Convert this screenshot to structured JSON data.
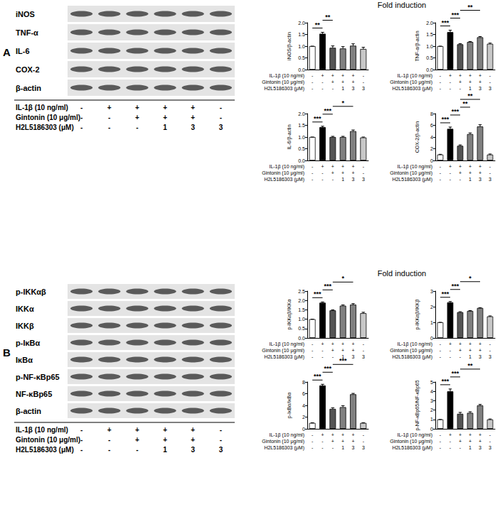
{
  "panels": [
    {
      "label": "A",
      "heading": "Fold induction",
      "blot_rows": [
        "iNOS",
        "TNF-α",
        "IL-6",
        "COX-2",
        "β-actin"
      ],
      "treatments": [
        {
          "label": "IL-1β (10 ng/ml)",
          "marks": [
            "-",
            "+",
            "+",
            "+",
            "+",
            "-"
          ]
        },
        {
          "label": "Gintonin (10 μg/ml)",
          "marks": [
            "-",
            "-",
            "+",
            "+",
            "+",
            "-"
          ]
        },
        {
          "label": "H2L5186303 (μM)",
          "marks": [
            "-",
            "-",
            "-",
            "1",
            "3",
            "3"
          ]
        }
      ]
    },
    {
      "label": "B",
      "heading": "Fold induction",
      "blot_rows": [
        "p-IKKαβ",
        "IKKα",
        "IKKβ",
        "p-IκBα",
        "IκBα",
        "p-NF-κBp65",
        "NF-κBp65",
        "β-actin"
      ],
      "treatments": [
        {
          "label": "IL-1β (10 ng/ml)",
          "marks": [
            "-",
            "+",
            "+",
            "+",
            "+",
            "-"
          ]
        },
        {
          "label": "Gintonin (10 μg/ml)",
          "marks": [
            "-",
            "-",
            "+",
            "+",
            "+",
            "-"
          ]
        },
        {
          "label": "H2L5186303 (μM)",
          "marks": [
            "-",
            "-",
            "-",
            "1",
            "3",
            "3"
          ]
        }
      ]
    }
  ],
  "chart_data": [
    {
      "type": "bar",
      "ylabel": "iNOS/β-actin",
      "treatments": [
        {
          "label": "IL-1β (10 ng/ml)",
          "marks": [
            "-",
            "+",
            "+",
            "+",
            "+",
            "-"
          ]
        },
        {
          "label": "Gintonin (10 μg/ml)",
          "marks": [
            "-",
            "-",
            "+",
            "+",
            "+",
            "-"
          ]
        },
        {
          "label": "H2L5186303 (μM)",
          "marks": [
            "-",
            "-",
            "-",
            "1",
            "3",
            "3"
          ]
        }
      ],
      "values": [
        1.0,
        1.53,
        0.93,
        0.9,
        1.02,
        0.88
      ],
      "errors": [
        0,
        0.06,
        0.08,
        0.08,
        0.08,
        0.07
      ],
      "colors": [
        "#ffffff",
        "#000000",
        "#555555",
        "#808080",
        "#808080",
        "#c8c8c8"
      ],
      "ylim": [
        0,
        2
      ],
      "yticks": [
        {
          "value": 0,
          "label": "0.0"
        },
        0.5,
        {
          "value": 1,
          "label": "1.0"
        },
        1.5,
        {
          "value": 2,
          "label": "2.0"
        }
      ],
      "grid": false,
      "significance": [
        {
          "from": 0,
          "to": 1,
          "label": "**"
        },
        {
          "from": 1,
          "to": 2,
          "label": "**"
        }
      ]
    },
    {
      "type": "bar",
      "ylabel": "TNF-α/β-actin",
      "treatments": [
        {
          "label": "IL-1β (10 ng/ml)",
          "marks": [
            "-",
            "+",
            "+",
            "+",
            "+",
            "-"
          ]
        },
        {
          "label": "Gintonin (10 μg/ml)",
          "marks": [
            "-",
            "-",
            "+",
            "+",
            "+",
            "-"
          ]
        },
        {
          "label": "H2L5186303 (μM)",
          "marks": [
            "-",
            "-",
            "-",
            "1",
            "3",
            "3"
          ]
        }
      ],
      "values": [
        1.0,
        1.6,
        1.08,
        1.18,
        1.38,
        1.1
      ],
      "errors": [
        0,
        0.08,
        0.03,
        0.02,
        0.03,
        0.03
      ],
      "colors": [
        "#ffffff",
        "#000000",
        "#555555",
        "#808080",
        "#808080",
        "#c8c8c8"
      ],
      "ylim": [
        0,
        2
      ],
      "yticks": [
        {
          "value": 0,
          "label": "0.0"
        },
        0.5,
        {
          "value": 1,
          "label": "1.0"
        },
        1.5,
        {
          "value": 2,
          "label": "2.0"
        }
      ],
      "grid": false,
      "significance": [
        {
          "from": 0,
          "to": 1,
          "label": "***"
        },
        {
          "from": 1,
          "to": 2,
          "label": "***"
        },
        {
          "from": 2,
          "to": 4,
          "label": "**"
        }
      ]
    },
    {
      "type": "bar",
      "ylabel": "IL-6/β-actin",
      "treatments": [
        {
          "label": "IL-1β (10 ng/ml)",
          "marks": [
            "-",
            "+",
            "+",
            "+",
            "+",
            "-"
          ]
        },
        {
          "label": "Gintonin (10 μg/ml)",
          "marks": [
            "-",
            "-",
            "+",
            "+",
            "+",
            "-"
          ]
        },
        {
          "label": "H2L5186303 (μM)",
          "marks": [
            "-",
            "-",
            "-",
            "1",
            "3",
            "3"
          ]
        }
      ],
      "values": [
        1.0,
        1.42,
        1.0,
        1.0,
        1.25,
        0.98
      ],
      "errors": [
        0,
        0.04,
        0.03,
        0.03,
        0.05,
        0.02
      ],
      "colors": [
        "#ffffff",
        "#000000",
        "#555555",
        "#808080",
        "#808080",
        "#c8c8c8"
      ],
      "ylim": [
        0,
        2
      ],
      "yticks": [
        {
          "value": 0,
          "label": "0.0"
        },
        0.5,
        {
          "value": 1,
          "label": "1.0"
        },
        1.5,
        {
          "value": 2,
          "label": "2.0"
        }
      ],
      "grid": false,
      "significance": [
        {
          "from": 0,
          "to": 1,
          "label": "***"
        },
        {
          "from": 1,
          "to": 2,
          "label": "***"
        },
        {
          "from": 2,
          "to": 4,
          "label": "*"
        }
      ]
    },
    {
      "type": "bar",
      "ylabel": "COX-2/β-actin",
      "treatments": [
        {
          "label": "IL-1β (10 ng/ml)",
          "marks": [
            "-",
            "+",
            "+",
            "+",
            "+",
            "-"
          ]
        },
        {
          "label": "Gintonin (10 μg/ml)",
          "marks": [
            "-",
            "-",
            "+",
            "+",
            "+",
            "-"
          ]
        },
        {
          "label": "H2L5186303 (μM)",
          "marks": [
            "-",
            "-",
            "-",
            "1",
            "3",
            "3"
          ]
        }
      ],
      "values": [
        1.0,
        5.4,
        2.5,
        4.5,
        5.8,
        1.0
      ],
      "errors": [
        0.05,
        0.3,
        0.15,
        0.2,
        0.3,
        0.1
      ],
      "colors": [
        "#ffffff",
        "#000000",
        "#555555",
        "#808080",
        "#808080",
        "#c8c8c8"
      ],
      "ylim": [
        0,
        8
      ],
      "yticks": [
        0,
        2,
        4,
        6,
        8
      ],
      "grid": false,
      "significance": [
        {
          "from": 0,
          "to": 1,
          "label": "***"
        },
        {
          "from": 1,
          "to": 2,
          "label": "***"
        },
        {
          "from": 2,
          "to": 3,
          "label": "**"
        },
        {
          "from": 2,
          "to": 4,
          "label": "**"
        }
      ]
    },
    {
      "type": "bar",
      "ylabel": "p-IKKαβ/IKKα",
      "treatments": [
        {
          "label": "IL-1β (10 ng/ml)",
          "marks": [
            "-",
            "+",
            "+",
            "+",
            "+",
            "-"
          ]
        },
        {
          "label": "Gintonin (10 μg/ml)",
          "marks": [
            "-",
            "-",
            "+",
            "+",
            "+",
            "-"
          ]
        },
        {
          "label": "H2L5186303 (μM)",
          "marks": [
            "-",
            "-",
            "-",
            "1",
            "3",
            "3"
          ]
        }
      ],
      "values": [
        1.0,
        1.88,
        1.47,
        1.72,
        1.78,
        1.32
      ],
      "errors": [
        0,
        0.04,
        0.03,
        0.04,
        0.05,
        0.05
      ],
      "colors": [
        "#ffffff",
        "#000000",
        "#555555",
        "#808080",
        "#808080",
        "#c8c8c8"
      ],
      "ylim": [
        0,
        2.5
      ],
      "yticks": [
        {
          "value": 0,
          "label": "0.0"
        },
        0.5,
        {
          "value": 1,
          "label": "1.0"
        },
        1.5,
        {
          "value": 2,
          "label": "2.0"
        },
        2.5
      ],
      "grid": false,
      "significance": [
        {
          "from": 0,
          "to": 1,
          "label": "***"
        },
        {
          "from": 1,
          "to": 2,
          "label": "***"
        },
        {
          "from": 2,
          "to": 4,
          "label": "*"
        }
      ]
    },
    {
      "type": "bar",
      "ylabel": "p-IKKαβ/IKKβ",
      "treatments": [
        {
          "label": "IL-1β (10 ng/ml)",
          "marks": [
            "-",
            "+",
            "+",
            "+",
            "+",
            "-"
          ]
        },
        {
          "label": "Gintonin (10 μg/ml)",
          "marks": [
            "-",
            "-",
            "+",
            "+",
            "+",
            "-"
          ]
        },
        {
          "label": "H2L5186303 (μM)",
          "marks": [
            "-",
            "-",
            "-",
            "1",
            "3",
            "3"
          ]
        }
      ],
      "values": [
        1.0,
        2.28,
        1.65,
        1.73,
        1.92,
        1.38
      ],
      "errors": [
        0,
        0.05,
        0.03,
        0.02,
        0.02,
        0.03
      ],
      "colors": [
        "#ffffff",
        "#000000",
        "#555555",
        "#808080",
        "#808080",
        "#c8c8c8"
      ],
      "ylim": [
        0,
        3
      ],
      "yticks": [
        0,
        1,
        2,
        3
      ],
      "grid": false,
      "significance": [
        {
          "from": 0,
          "to": 1,
          "label": "***"
        },
        {
          "from": 1,
          "to": 2,
          "label": "***"
        },
        {
          "from": 2,
          "to": 4,
          "label": "*"
        }
      ]
    },
    {
      "type": "bar",
      "ylabel": "p-IκBα/IκBα",
      "treatments": [
        {
          "label": "IL-1β (10 ng/ml)",
          "marks": [
            "-",
            "+",
            "+",
            "+",
            "+",
            "-"
          ]
        },
        {
          "label": "Gintonin (10 μg/ml)",
          "marks": [
            "-",
            "-",
            "+",
            "+",
            "+",
            "-"
          ]
        },
        {
          "label": "H2L5186303 (μM)",
          "marks": [
            "-",
            "-",
            "-",
            "1",
            "3",
            "3"
          ]
        }
      ],
      "values": [
        1.0,
        7.4,
        3.4,
        3.7,
        5.9,
        1.0
      ],
      "errors": [
        0.03,
        0.2,
        0.2,
        0.25,
        0.15,
        0.05
      ],
      "colors": [
        "#ffffff",
        "#000000",
        "#555555",
        "#808080",
        "#808080",
        "#c8c8c8"
      ],
      "ylim": [
        0,
        8
      ],
      "yticks": [
        0,
        2,
        4,
        6,
        8
      ],
      "grid": false,
      "significance": [
        {
          "from": 0,
          "to": 1,
          "label": "***"
        },
        {
          "from": 1,
          "to": 2,
          "label": "***"
        },
        {
          "from": 2,
          "to": 4,
          "label": "***"
        }
      ]
    },
    {
      "type": "bar",
      "ylabel": "p-NF-κBp65/NF-κBp65",
      "treatments": [
        {
          "label": "IL-1β (10 ng/ml)",
          "marks": [
            "-",
            "+",
            "+",
            "+",
            "+",
            "-"
          ]
        },
        {
          "label": "Gintonin (10 μg/ml)",
          "marks": [
            "-",
            "-",
            "+",
            "+",
            "+",
            "-"
          ]
        },
        {
          "label": "H2L5186303 (μM)",
          "marks": [
            "-",
            "-",
            "-",
            "1",
            "3",
            "3"
          ]
        }
      ],
      "values": [
        1.0,
        4.0,
        1.6,
        1.7,
        2.5,
        1.0
      ],
      "errors": [
        0,
        0.25,
        0.15,
        0.12,
        0.1,
        0.05
      ],
      "colors": [
        "#ffffff",
        "#000000",
        "#555555",
        "#808080",
        "#808080",
        "#c8c8c8"
      ],
      "ylim": [
        0,
        5
      ],
      "yticks": [
        0,
        1,
        2,
        3,
        4,
        5
      ],
      "grid": false,
      "significance": [
        {
          "from": 0,
          "to": 1,
          "label": "***"
        },
        {
          "from": 1,
          "to": 2,
          "label": "***"
        },
        {
          "from": 2,
          "to": 4,
          "label": "**"
        }
      ]
    }
  ]
}
